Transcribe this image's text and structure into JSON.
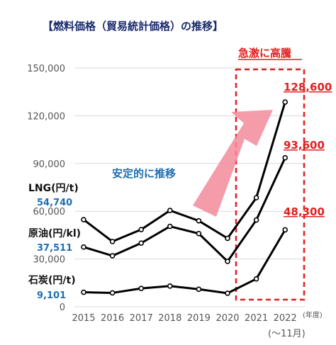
{
  "title": "【燃料価格（貿易統計価格）の推移】",
  "chart_data": {
    "type": "line",
    "categories": [
      "2015",
      "2016",
      "2017",
      "2018",
      "2019",
      "2020",
      "2021",
      "2022"
    ],
    "x_unit": "(年度)",
    "period_note": "(〜11月)",
    "ylim": [
      0,
      150000
    ],
    "yticks": [
      "0",
      "30,000",
      "60,000",
      "90,000",
      "120,000",
      "150,000"
    ],
    "series": [
      {
        "name": "LNG(円/t)",
        "start_label": "54,740",
        "end_label": "128,600",
        "values": [
          54740,
          41000,
          48500,
          60500,
          54000,
          43000,
          68500,
          128600
        ]
      },
      {
        "name": "原油(円/kl)",
        "start_label": "37,511",
        "end_label": "93,600",
        "values": [
          37511,
          32000,
          40000,
          50500,
          46000,
          28500,
          54500,
          93600
        ]
      },
      {
        "name": "石炭(円/t)",
        "start_label": "9,101",
        "end_label": "48,300",
        "values": [
          9101,
          8700,
          11500,
          13000,
          11000,
          8500,
          17500,
          48300
        ]
      }
    ],
    "annotations": {
      "surge": "急激に高騰",
      "stable": "安定的に推移"
    },
    "colors": {
      "line": "#000000",
      "axis_text": "#555555",
      "start_value": "#1f6fb2",
      "end_value": "#e02020",
      "arrow": "#f28b9a",
      "box": "#e02020"
    },
    "grid": true
  }
}
